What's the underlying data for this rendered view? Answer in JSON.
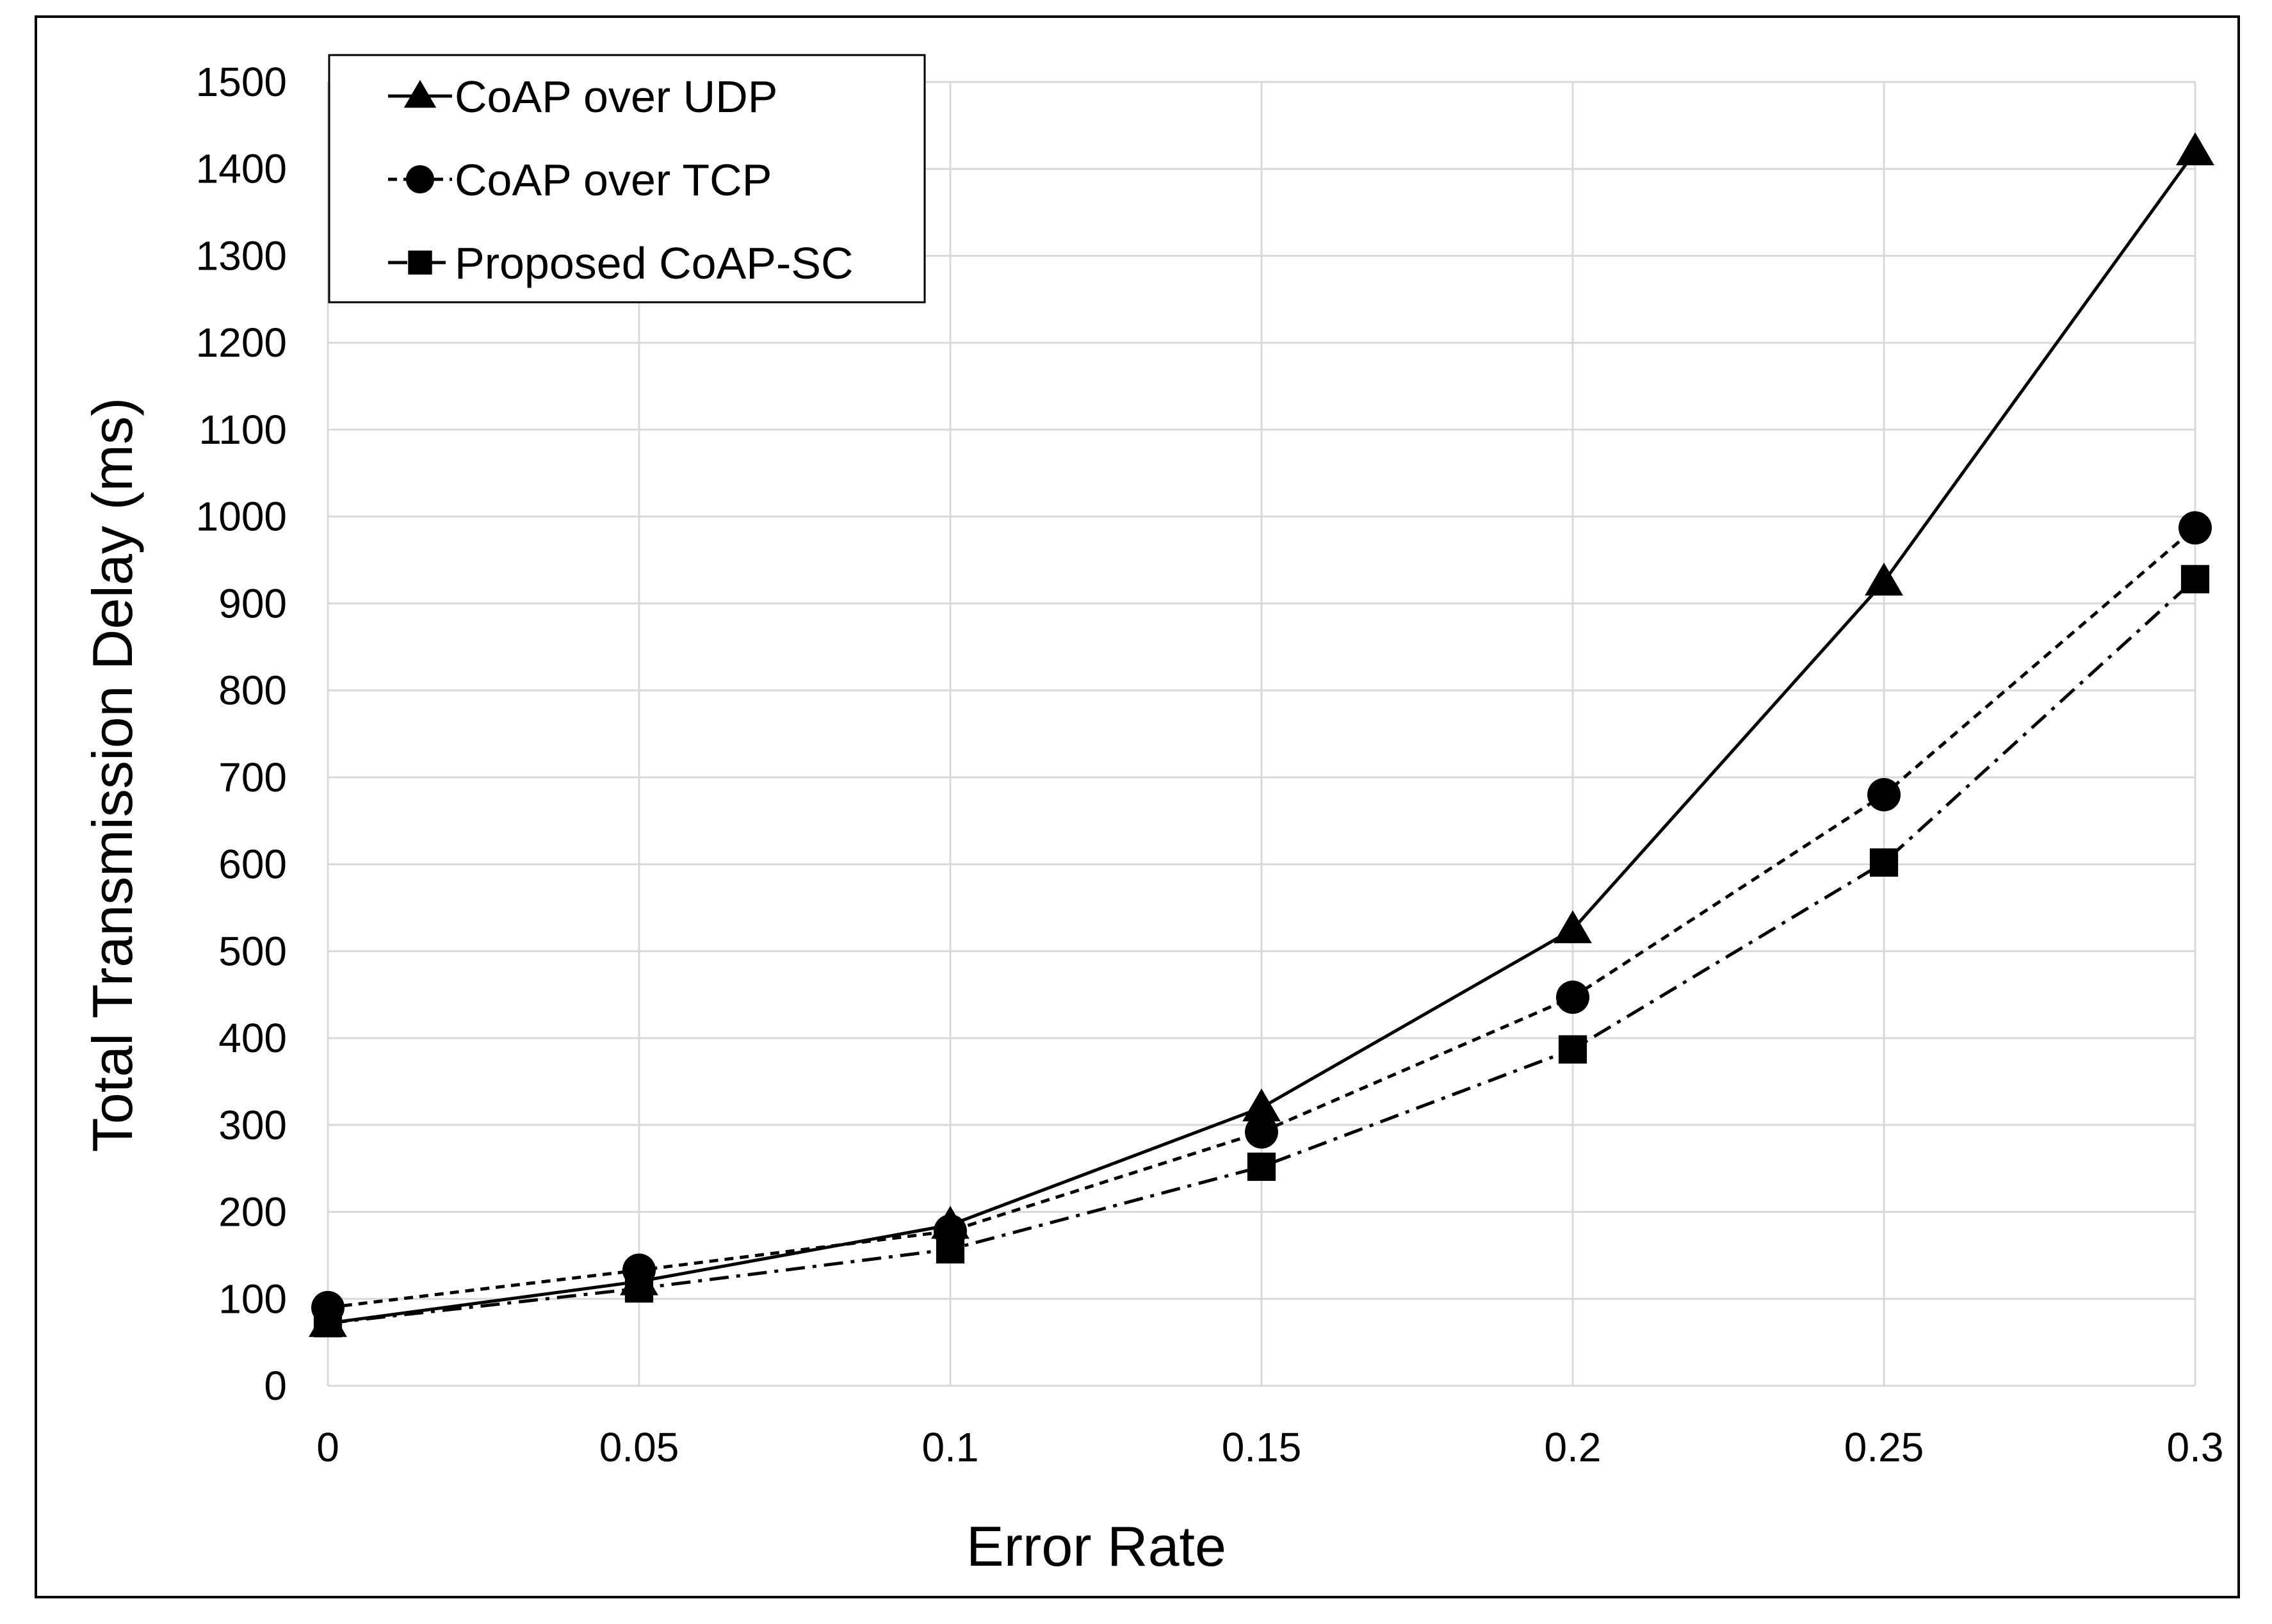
{
  "chart_data": {
    "type": "line",
    "title": "",
    "xlabel": "Error Rate",
    "ylabel": "Total Transmission Delay (ms)",
    "x": [
      0,
      0.05,
      0.1,
      0.15,
      0.2,
      0.25,
      0.3
    ],
    "x_tick_labels": [
      "0",
      "0.05",
      "0.1",
      "0.15",
      "0.2",
      "0.25",
      "0.3"
    ],
    "xlim": [
      0,
      0.3
    ],
    "ylim": [
      0,
      1500
    ],
    "y_ticks": [
      0,
      100,
      200,
      300,
      400,
      500,
      600,
      700,
      800,
      900,
      1000,
      1100,
      1200,
      1300,
      1400,
      1500
    ],
    "y_tick_labels": [
      "0",
      "100",
      "200",
      "300",
      "400",
      "500",
      "600",
      "700",
      "800",
      "900",
      "1000",
      "1100",
      "1200",
      "1300",
      "1400",
      "1500"
    ],
    "grid": true,
    "legend_position": "top-left",
    "series": [
      {
        "name": "CoAP over UDP",
        "marker": "triangle",
        "line_style": "solid",
        "values": [
          72,
          120,
          185,
          320,
          525,
          925,
          1420
        ]
      },
      {
        "name": "CoAP over TCP",
        "marker": "circle",
        "line_style": "dashed",
        "values": [
          90,
          133,
          178,
          292,
          447,
          680,
          987
        ]
      },
      {
        "name": "Proposed CoAP-SC",
        "marker": "square",
        "line_style": "dash-dot",
        "values": [
          72,
          112,
          157,
          252,
          387,
          602,
          928
        ]
      }
    ],
    "colors": {
      "line": "#000000",
      "grid": "#d9d9d9",
      "frame": "#000000",
      "background": "#ffffff"
    }
  }
}
